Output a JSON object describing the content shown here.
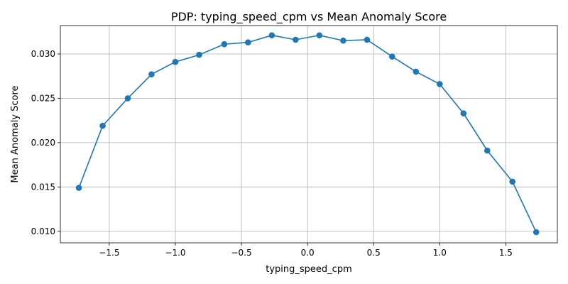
{
  "chart_data": {
    "type": "line",
    "title": "PDP: typing_speed_cpm vs Mean Anomaly Score",
    "xlabel": "typing_speed_cpm",
    "ylabel": "Mean Anomaly Score",
    "xlim": [
      -1.87,
      1.89
    ],
    "ylim": [
      0.0087,
      0.0332
    ],
    "grid": true,
    "x_ticks": [
      -1.5,
      -1.0,
      -0.5,
      0.0,
      0.5,
      1.0,
      1.5
    ],
    "x_tick_labels": [
      "−1.5",
      "−1.0",
      "−0.5",
      "0.0",
      "0.5",
      "1.0",
      "1.5"
    ],
    "y_ticks": [
      0.01,
      0.015,
      0.02,
      0.025,
      0.03
    ],
    "y_tick_labels": [
      "0.010",
      "0.015",
      "0.020",
      "0.025",
      "0.030"
    ],
    "series": [
      {
        "color": "#1f77b4",
        "marker": "circle",
        "x": [
          -1.73,
          -1.55,
          -1.36,
          -1.18,
          -1.0,
          -0.82,
          -0.63,
          -0.45,
          -0.27,
          -0.09,
          0.09,
          0.27,
          0.45,
          0.64,
          0.82,
          1.0,
          1.18,
          1.36,
          1.55,
          1.73
        ],
        "y": [
          0.0149,
          0.0219,
          0.025,
          0.0277,
          0.0291,
          0.0299,
          0.0311,
          0.0313,
          0.0321,
          0.0316,
          0.0321,
          0.0315,
          0.0316,
          0.0297,
          0.028,
          0.0266,
          0.0233,
          0.0191,
          0.0156,
          0.0099
        ]
      }
    ]
  }
}
